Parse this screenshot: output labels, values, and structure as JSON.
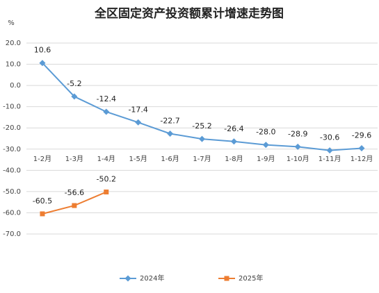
{
  "chart_data": {
    "type": "line",
    "title": "全区固定资产投资额累计增速走势图",
    "y_label": "%",
    "categories": [
      "1-2月",
      "1-3月",
      "1-4月",
      "1-5月",
      "1-6月",
      "1-7月",
      "1-8月",
      "1-9月",
      "1-10月",
      "1-11月",
      "1-12月"
    ],
    "series": [
      {
        "name": "2024年",
        "color": "#5b9bd5",
        "marker": "diamond",
        "values": [
          10.6,
          -5.2,
          -12.4,
          -17.4,
          -22.7,
          -25.2,
          -26.4,
          -28.0,
          -28.9,
          -30.6,
          -29.6
        ],
        "value_labels": [
          "10.6",
          "-5.2",
          "-12.4",
          "-17.4",
          "-22.7",
          "-25.2",
          "-26.4",
          "-28.0",
          "-28.9",
          "-30.6",
          "-29.6"
        ]
      },
      {
        "name": "2025年",
        "color": "#ed7d31",
        "marker": "square",
        "values": [
          -60.5,
          -56.6,
          -50.2,
          null,
          null,
          null,
          null,
          null,
          null,
          null,
          null
        ],
        "value_labels": [
          "-60.5",
          "-56.6",
          "-50.2",
          null,
          null,
          null,
          null,
          null,
          null,
          null,
          null
        ]
      }
    ],
    "ylim": [
      -70,
      20
    ],
    "yticks": [
      {
        "value": 20,
        "label": "20.0"
      },
      {
        "value": 10,
        "label": "10.0"
      },
      {
        "value": 0,
        "label": "0.0"
      },
      {
        "value": -10,
        "label": "-10.0"
      },
      {
        "value": -20,
        "label": "-20.0"
      },
      {
        "value": -30,
        "label": "-30.0"
      },
      {
        "value": -40,
        "label": "-40.0"
      },
      {
        "value": -50,
        "label": "-50.0"
      },
      {
        "value": -60,
        "label": "-60.0"
      },
      {
        "value": -70,
        "label": "-70.0"
      }
    ],
    "grid": true,
    "legend": "bottom"
  }
}
